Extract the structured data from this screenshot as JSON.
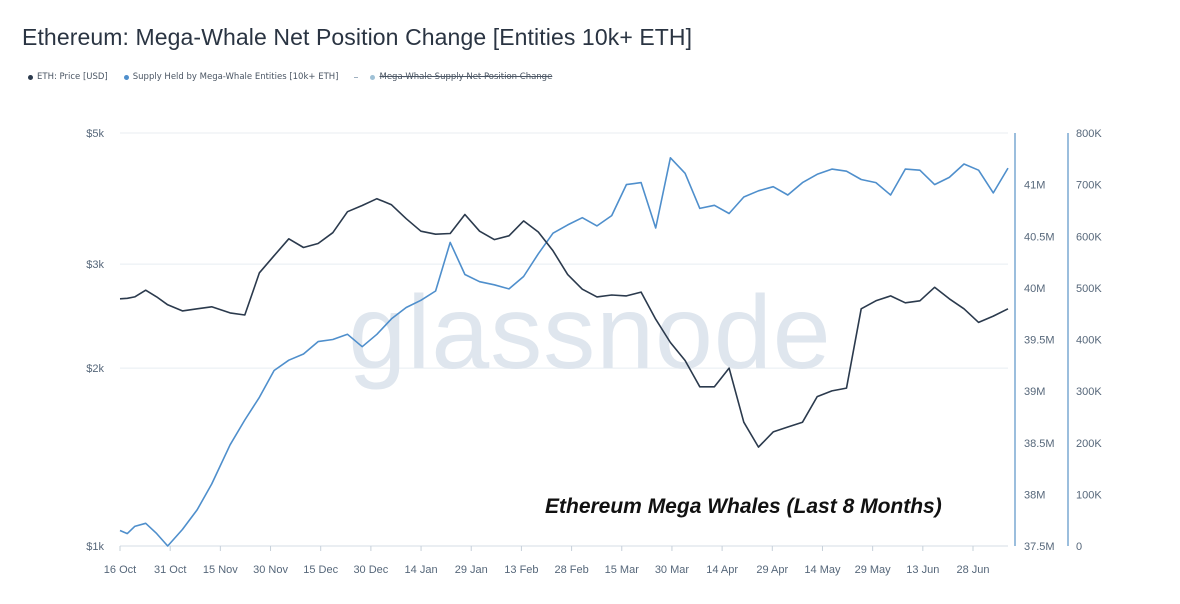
{
  "title": "Ethereum: Mega-Whale Net Position Change [Entities 10k+ ETH]",
  "legend": [
    {
      "label": "ETH: Price [USD]",
      "color": "#2b3a4d",
      "marker": "dot",
      "struck": false
    },
    {
      "label": "Supply Held by Mega-Whale Entities [10k+ ETH]",
      "color": "#4f8fcc",
      "marker": "dot",
      "struck": false
    },
    {
      "label": "Mega-Whale Supply Net Position Change",
      "color": "#9fc1d6",
      "marker": "dot",
      "struck": true
    }
  ],
  "watermark": "glassnode",
  "annotation": "Ethereum Mega Whales (Last 8 Months)",
  "chart_data": {
    "type": "line",
    "x_ticks": [
      "16 Oct",
      "31 Oct",
      "15 Nov",
      "30 Nov",
      "15 Dec",
      "30 Dec",
      "14 Jan",
      "29 Jan",
      "13 Feb",
      "28 Feb",
      "15 Mar",
      "30 Mar",
      "14 Apr",
      "29 Apr",
      "14 May",
      "29 May",
      "13 Jun",
      "28 Jun"
    ],
    "y_left": {
      "ticks": [
        "$1k",
        "$2k",
        "$3k",
        "$5k"
      ],
      "tick_values": [
        1000,
        2000,
        3000,
        5000
      ],
      "scale": "log",
      "range": [
        1000,
        5000
      ]
    },
    "y_right_inner": {
      "ticks": [
        "37.5M",
        "38M",
        "38.5M",
        "39M",
        "39.5M",
        "40M",
        "40.5M",
        "41M"
      ],
      "tick_values": [
        37.5,
        38,
        38.5,
        39,
        39.5,
        40,
        40.5,
        41
      ],
      "unit": "M ETH",
      "range": [
        37.5,
        41.5
      ]
    },
    "y_right_outer": {
      "ticks": [
        "0",
        "100K",
        "200K",
        "300K",
        "400K",
        "500K",
        "600K",
        "700K",
        "800K"
      ],
      "tick_values": [
        0,
        100,
        200,
        300,
        400,
        500,
        600,
        700,
        800
      ],
      "unit": "K ETH",
      "range": [
        0,
        800
      ]
    },
    "grid": "horizontal",
    "series": [
      {
        "name": "ETH: Price [USD]",
        "color": "#2b3a4d",
        "axis": "left",
        "x": [
          0,
          2,
          4,
          7,
          10,
          13,
          17,
          21,
          25,
          30,
          34,
          38,
          42,
          46,
          50,
          54,
          58,
          62,
          66,
          70,
          74,
          78,
          82,
          86,
          90,
          94,
          98,
          102,
          106,
          110,
          114,
          118,
          122,
          126,
          130,
          134,
          138,
          142,
          146,
          150,
          154,
          158,
          162,
          166,
          170,
          174,
          178,
          182,
          186,
          190,
          194,
          198,
          202,
          206,
          210,
          214,
          218,
          222,
          226,
          230,
          234,
          238,
          242
        ],
        "y": [
          2620,
          2625,
          2640,
          2710,
          2640,
          2560,
          2500,
          2520,
          2540,
          2480,
          2460,
          2900,
          3100,
          3310,
          3200,
          3250,
          3390,
          3680,
          3770,
          3870,
          3780,
          3580,
          3410,
          3370,
          3380,
          3640,
          3410,
          3300,
          3350,
          3550,
          3400,
          3160,
          2880,
          2720,
          2640,
          2660,
          2650,
          2690,
          2420,
          2210,
          2060,
          1860,
          1860,
          2000,
          1620,
          1470,
          1560,
          1590,
          1620,
          1790,
          1830,
          1850,
          2520,
          2600,
          2650,
          2580,
          2600,
          2740,
          2620,
          2520,
          2390,
          2450,
          2520
        ]
      },
      {
        "name": "Supply Held by Mega-Whale Entities [10k+ ETH]",
        "color": "#4f8fcc",
        "axis": "right_inner",
        "x": [
          0,
          2,
          4,
          7,
          10,
          13,
          17,
          21,
          25,
          30,
          34,
          38,
          42,
          46,
          50,
          54,
          58,
          62,
          66,
          70,
          74,
          78,
          82,
          86,
          90,
          94,
          98,
          102,
          106,
          110,
          114,
          118,
          122,
          126,
          130,
          134,
          138,
          142,
          146,
          150,
          154,
          158,
          162,
          166,
          170,
          174,
          178,
          182,
          186,
          190,
          194,
          198,
          202,
          206,
          210,
          214,
          218,
          222,
          226,
          230,
          234,
          238,
          242
        ],
        "y": [
          37.65,
          37.62,
          37.69,
          37.72,
          37.62,
          37.5,
          37.66,
          37.85,
          38.1,
          38.48,
          38.72,
          38.94,
          39.2,
          39.3,
          39.36,
          39.48,
          39.5,
          39.55,
          39.43,
          39.55,
          39.7,
          39.81,
          39.88,
          39.97,
          40.44,
          40.13,
          40.06,
          40.03,
          39.99,
          40.11,
          40.33,
          40.53,
          40.61,
          40.68,
          40.6,
          40.7,
          41.0,
          41.02,
          40.58,
          41.26,
          41.11,
          40.77,
          40.8,
          40.72,
          40.88,
          40.94,
          40.98,
          40.9,
          41.02,
          41.1,
          41.15,
          41.13,
          41.05,
          41.02,
          40.9,
          41.15,
          41.14,
          41.0,
          41.07,
          41.2,
          41.14,
          40.92,
          41.16
        ]
      }
    ]
  }
}
